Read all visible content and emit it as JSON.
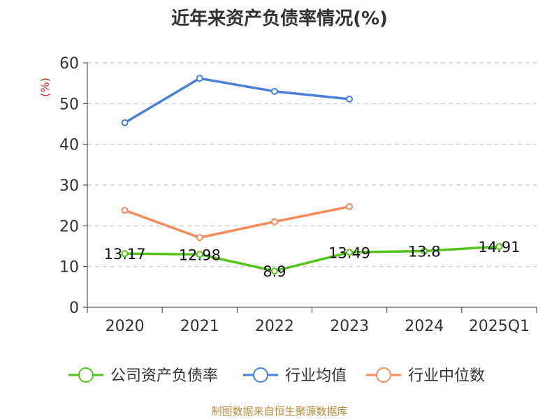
{
  "chart_data": {
    "type": "line",
    "title": "近年来资产负债率情况(%)",
    "ylabel": "(%)",
    "xlabel": "",
    "categories": [
      "2020",
      "2021",
      "2022",
      "2023",
      "2024",
      "2025Q1"
    ],
    "ylim": [
      0,
      60
    ],
    "yticks": [
      0,
      10,
      20,
      30,
      40,
      50,
      60
    ],
    "grid": true,
    "legend_position": "bottom",
    "series": [
      {
        "name": "公司资产负债率",
        "color": "#52c41a",
        "values": [
          13.17,
          12.98,
          8.9,
          13.49,
          13.8,
          14.91
        ],
        "labels": [
          "13.17",
          "12.98",
          "8.9",
          "13.49",
          "13.8",
          "14.91"
        ]
      },
      {
        "name": "行业均值",
        "color": "#4a7fdc",
        "values": [
          45.3,
          56.2,
          53.0,
          51.1,
          null,
          null
        ]
      },
      {
        "name": "行业中位数",
        "color": "#f58c5a",
        "values": [
          23.8,
          17.1,
          21.0,
          24.7,
          null,
          null
        ]
      }
    ]
  },
  "source_note": "制图数据来自恒生聚源数据库"
}
